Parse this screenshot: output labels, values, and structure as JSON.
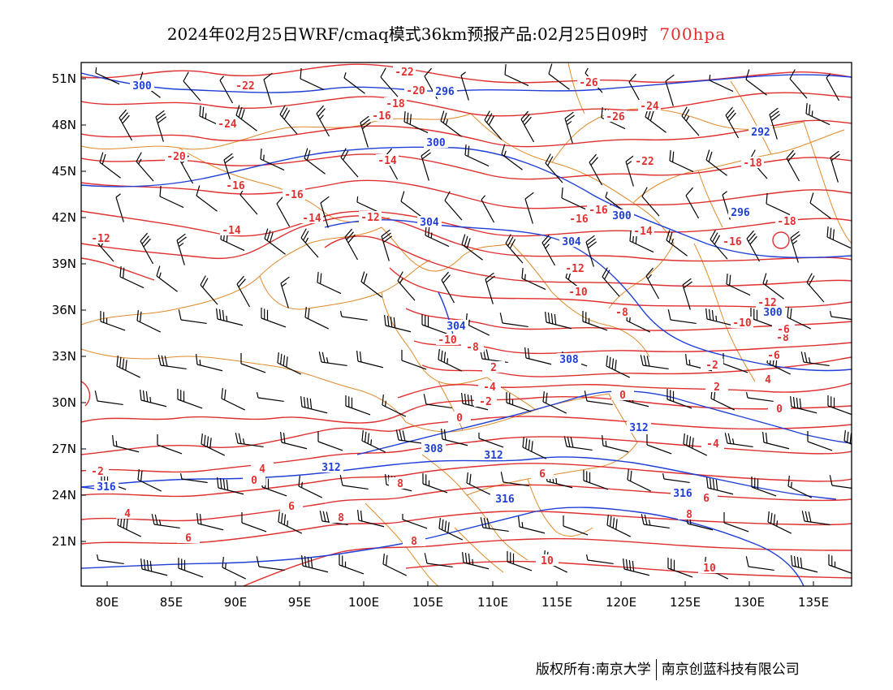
{
  "title": {
    "main": "2024年02月25日WRF/cmaq模式36km预报产品:02月25日09时",
    "level": "700hpa"
  },
  "colors": {
    "temperature": "#e03030",
    "height": "#1f3fd8",
    "border": "#e08a2a",
    "wind": "#000000"
  },
  "axes": {
    "y_ticks": [
      "51N",
      "48N",
      "45N",
      "42N",
      "39N",
      "36N",
      "33N",
      "30N",
      "27N",
      "24N",
      "21N"
    ],
    "x_ticks": [
      "80E",
      "85E",
      "90E",
      "95E",
      "100E",
      "105E",
      "110E",
      "115E",
      "120E",
      "125E",
      "130E",
      "135E"
    ]
  },
  "temperature_labels": [
    "-22",
    "-22",
    "-20",
    "-18",
    "-16",
    "-26",
    "-24",
    "-26",
    "-22",
    "-24",
    "-20",
    "-18",
    "-16",
    "-16",
    "-16",
    "-14",
    "-14",
    "-12",
    "-12",
    "-14",
    "-16",
    "-16",
    "-18",
    "-12",
    "-10",
    "-8",
    "-10",
    "-8",
    "-10",
    "-8",
    "-6",
    "-4",
    "-2",
    "0",
    "-2",
    "0",
    "2",
    "4",
    "0",
    "-2",
    "4",
    "0",
    "2",
    "4",
    "6",
    "8",
    "6",
    "8",
    "6",
    "8",
    "10",
    "-14",
    "-12",
    "-6",
    "-4",
    "6",
    "8",
    "10"
  ],
  "height_labels": [
    "300",
    "296",
    "300",
    "292",
    "304",
    "300",
    "296",
    "304",
    "304",
    "308",
    "312",
    "308",
    "312",
    "312",
    "316",
    "312",
    "316",
    "316",
    "300"
  ],
  "copyright": {
    "holder": "版权所有:南京大学",
    "partner": "南京创蓝科技有限公司"
  }
}
